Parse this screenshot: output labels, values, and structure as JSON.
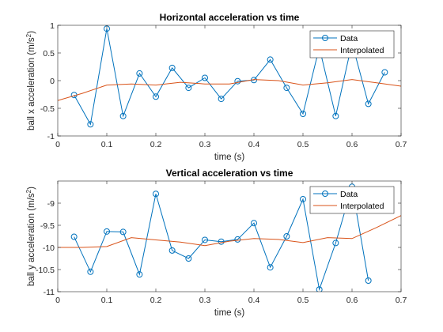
{
  "chart_data": [
    {
      "type": "line",
      "title": "Horizontal acceleration vs time",
      "xlabel": "time (s)",
      "ylabel": "ball x acceleration (m/s",
      "ylabel_sup": "2",
      "ylabel_end": ")",
      "xlim": [
        0,
        0.7
      ],
      "ylim": [
        -1,
        1
      ],
      "xticks": [
        0,
        0.1,
        0.2,
        0.3,
        0.4,
        0.5,
        0.6,
        0.7
      ],
      "xtick_labels": [
        "0",
        "0.1",
        "0.2",
        "0.3",
        "0.4",
        "0.5",
        "0.6",
        "0.7"
      ],
      "yticks": [
        -1,
        -0.5,
        0,
        0.5,
        1
      ],
      "ytick_labels": [
        "-1",
        "-0.5",
        "0",
        "0.5",
        "1"
      ],
      "grid": false,
      "legend": "top-right",
      "series": [
        {
          "name": "Data",
          "color": "#0072BD",
          "marker": "circle",
          "x": [
            0.0333,
            0.0667,
            0.1,
            0.1333,
            0.1667,
            0.2,
            0.2333,
            0.2667,
            0.3,
            0.3333,
            0.3667,
            0.4,
            0.4333,
            0.4667,
            0.5,
            0.5333,
            0.5667,
            0.6,
            0.6333,
            0.6667
          ],
          "y": [
            -0.26,
            -0.79,
            0.94,
            -0.64,
            0.13,
            -0.29,
            0.23,
            -0.13,
            0.05,
            -0.33,
            -0.01,
            0.01,
            0.38,
            -0.13,
            -0.6,
            0.6,
            -0.64,
            0.68,
            -0.42,
            0.15
          ]
        },
        {
          "name": "Interpolated",
          "color": "#D95319",
          "marker": "none",
          "x": [
            0,
            0.05,
            0.1,
            0.15,
            0.2,
            0.25,
            0.3,
            0.35,
            0.4,
            0.45,
            0.5,
            0.55,
            0.6,
            0.65,
            0.7
          ],
          "y": [
            -0.36,
            -0.23,
            -0.08,
            -0.06,
            -0.08,
            -0.03,
            -0.06,
            -0.06,
            0.02,
            0.0,
            -0.08,
            -0.04,
            0.02,
            -0.04,
            -0.1
          ]
        }
      ]
    },
    {
      "type": "line",
      "title": "Vertical acceleration vs time",
      "xlabel": "time (s)",
      "ylabel": "ball y acceleration (m/s",
      "ylabel_sup": "2",
      "ylabel_end": ")",
      "xlim": [
        0,
        0.7
      ],
      "ylim": [
        -11,
        -8.5
      ],
      "xticks": [
        0,
        0.1,
        0.2,
        0.3,
        0.4,
        0.5,
        0.6,
        0.7
      ],
      "xtick_labels": [
        "0",
        "0.1",
        "0.2",
        "0.3",
        "0.4",
        "0.5",
        "0.6",
        "0.7"
      ],
      "yticks": [
        -11,
        -10.5,
        -10,
        -9.5,
        -9
      ],
      "ytick_labels": [
        "-11",
        "-10.5",
        "-10",
        "-9.5",
        "-9"
      ],
      "grid": false,
      "legend": "top-right",
      "series": [
        {
          "name": "Data",
          "color": "#0072BD",
          "marker": "circle",
          "x": [
            0.0333,
            0.0667,
            0.1,
            0.1333,
            0.1667,
            0.2,
            0.2333,
            0.2667,
            0.3,
            0.3333,
            0.3667,
            0.4,
            0.4333,
            0.4667,
            0.5,
            0.5333,
            0.5667,
            0.6,
            0.6333
          ],
          "y": [
            -9.76,
            -10.55,
            -9.64,
            -9.65,
            -10.61,
            -8.79,
            -10.07,
            -10.25,
            -9.83,
            -9.87,
            -9.82,
            -9.45,
            -10.45,
            -9.75,
            -8.91,
            -10.95,
            -9.9,
            -8.63,
            -10.75
          ]
        },
        {
          "name": "Interpolated",
          "color": "#D95319",
          "marker": "none",
          "x": [
            0,
            0.05,
            0.1,
            0.15,
            0.2,
            0.25,
            0.3,
            0.35,
            0.4,
            0.45,
            0.5,
            0.55,
            0.6,
            0.65,
            0.7
          ],
          "y": [
            -10.0,
            -10.0,
            -9.98,
            -9.78,
            -9.83,
            -9.88,
            -9.96,
            -9.86,
            -9.8,
            -9.82,
            -9.89,
            -9.78,
            -9.8,
            -9.55,
            -9.28
          ]
        }
      ]
    }
  ]
}
